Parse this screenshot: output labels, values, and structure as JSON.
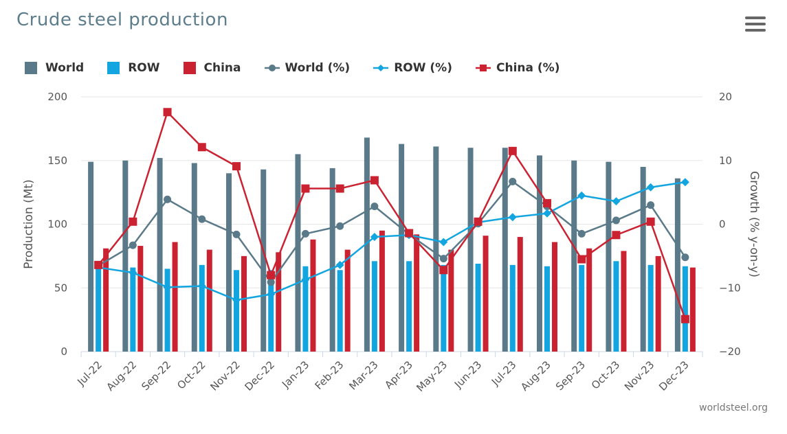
{
  "header": {
    "title": "Crude steel production",
    "menu_icon": "hamburger-menu-icon"
  },
  "credit": "worldsteel.org",
  "legend": [
    {
      "label": "World",
      "color": "#5b7a89",
      "kind": "bar"
    },
    {
      "label": "ROW",
      "color": "#12a5e0",
      "kind": "bar"
    },
    {
      "label": "China",
      "color": "#cb2232",
      "kind": "bar"
    },
    {
      "label": "World (%)",
      "color": "#5b7a89",
      "kind": "line",
      "marker": "circle"
    },
    {
      "label": "ROW (%)",
      "color": "#12a5e0",
      "kind": "line",
      "marker": "diamond"
    },
    {
      "label": "China (%)",
      "color": "#cb2232",
      "kind": "line",
      "marker": "square"
    }
  ],
  "chart_data": {
    "type": "bar+line",
    "title": "Crude steel production",
    "categories": [
      "Jul-22",
      "Aug-22",
      "Sep-22",
      "Oct-22",
      "Nov-22",
      "Dec-22",
      "Jan-23",
      "Feb-23",
      "Mar-23",
      "Apr-23",
      "May-23",
      "Jun-23",
      "Jul-23",
      "Aug-23",
      "Sep-23",
      "Oct-23",
      "Nov-23",
      "Dec-23"
    ],
    "ylabel": "Production (Mt)",
    "y2label": "Growth (% y-on-y)",
    "ylim": [
      0,
      200
    ],
    "y2lim": [
      -20,
      20
    ],
    "yticks": [
      "0",
      "50",
      "100",
      "150",
      "200"
    ],
    "y2ticks": [
      "−20",
      "−10",
      "0",
      "10",
      "20"
    ],
    "grid": true,
    "legend_position": "top-left",
    "bar_series": [
      {
        "name": "World",
        "color": "#5b7a89",
        "values": [
          149,
          150,
          152,
          148,
          140,
          143,
          155,
          144,
          168,
          163,
          161,
          160,
          160,
          154,
          150,
          149,
          145,
          136
        ]
      },
      {
        "name": "ROW",
        "color": "#12a5e0",
        "values": [
          68,
          66,
          65,
          68,
          64,
          64,
          67,
          64,
          71,
          71,
          68,
          69,
          68,
          67,
          68,
          71,
          68,
          67
        ]
      },
      {
        "name": "China",
        "color": "#cb2232",
        "values": [
          81,
          83,
          86,
          80,
          75,
          78,
          88,
          80,
          95,
          92,
          80,
          91,
          90,
          86,
          81,
          79,
          75,
          66
        ]
      }
    ],
    "line_series": [
      {
        "name": "World (%)",
        "color": "#5b7a89",
        "marker": "circle",
        "values": [
          -6.5,
          -3.3,
          3.9,
          0.8,
          -1.6,
          -9.1,
          -1.5,
          -0.3,
          2.8,
          -1.6,
          -5.4,
          0.1,
          6.7,
          2.8,
          -1.5,
          0.6,
          3.0,
          -5.2
        ]
      },
      {
        "name": "ROW (%)",
        "color": "#12a5e0",
        "marker": "diamond",
        "values": [
          -6.8,
          -7.6,
          -9.9,
          -9.7,
          -11.9,
          -11.0,
          -8.7,
          -6.4,
          -2.0,
          -1.7,
          -2.8,
          0.3,
          1.1,
          1.7,
          4.5,
          3.6,
          5.8,
          6.6
        ]
      },
      {
        "name": "China (%)",
        "color": "#cb2232",
        "marker": "square",
        "values": [
          -6.4,
          0.4,
          17.6,
          12.1,
          9.1,
          -8.0,
          5.6,
          5.6,
          6.9,
          -1.4,
          -7.2,
          0.4,
          11.5,
          3.3,
          -5.5,
          -1.7,
          0.4,
          -14.9
        ]
      }
    ]
  }
}
